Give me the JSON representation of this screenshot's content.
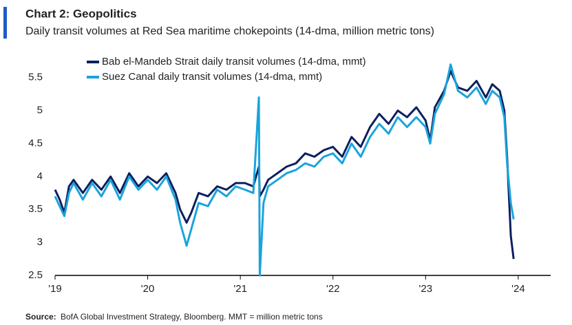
{
  "chart_data": {
    "type": "line",
    "title": "Chart 2: Geopolitics",
    "subtitle": "Daily transit volumes at Red Sea maritime chokepoints (14-dma, million metric tons)",
    "source_label": "Source:",
    "source": "BofA Global Investment Strategy, Bloomberg. MMT = million metric tons",
    "x": [
      2019,
      2019.05,
      2019.1,
      2019.15,
      2019.2,
      2019.3,
      2019.4,
      2019.5,
      2019.6,
      2019.7,
      2019.8,
      2019.9,
      2020,
      2020.1,
      2020.2,
      2020.3,
      2020.35,
      2020.42,
      2020.47,
      2020.55,
      2020.65,
      2020.75,
      2020.85,
      2020.95,
      2021.05,
      2021.14,
      2021.2,
      2021.21,
      2021.25,
      2021.3,
      2021.4,
      2021.5,
      2021.6,
      2021.7,
      2021.8,
      2021.9,
      2022,
      2022.1,
      2022.2,
      2022.3,
      2022.4,
      2022.5,
      2022.6,
      2022.7,
      2022.8,
      2022.9,
      2023,
      2023.05,
      2023.1,
      2023.2,
      2023.27,
      2023.35,
      2023.45,
      2023.55,
      2023.65,
      2023.72,
      2023.8,
      2023.85,
      2023.88,
      2023.92,
      2023.95
    ],
    "series": [
      {
        "name": "Bab el-Mandeb Strait daily transit volumes (14-dma, mmt)",
        "color": "#0b1f5e",
        "values": [
          3.8,
          3.65,
          3.45,
          3.85,
          3.95,
          3.75,
          3.95,
          3.8,
          4.0,
          3.75,
          4.05,
          3.85,
          4.0,
          3.9,
          4.05,
          3.75,
          3.5,
          3.3,
          3.45,
          3.75,
          3.7,
          3.85,
          3.8,
          3.9,
          3.9,
          3.85,
          4.15,
          3.7,
          3.8,
          3.95,
          4.05,
          4.15,
          4.2,
          4.35,
          4.3,
          4.4,
          4.45,
          4.3,
          4.6,
          4.45,
          4.75,
          4.95,
          4.8,
          5.0,
          4.9,
          5.05,
          4.85,
          4.55,
          5.05,
          5.3,
          5.6,
          5.35,
          5.3,
          5.45,
          5.2,
          5.4,
          5.3,
          5.0,
          4.3,
          3.1,
          2.75
        ]
      },
      {
        "name": "Suez Canal daily transit volumes (14-dma, mmt)",
        "color": "#1aa3dc",
        "values": [
          3.7,
          3.55,
          3.4,
          3.75,
          3.9,
          3.65,
          3.9,
          3.7,
          3.95,
          3.65,
          4.0,
          3.8,
          3.95,
          3.8,
          4.0,
          3.65,
          3.3,
          2.95,
          3.2,
          3.6,
          3.55,
          3.8,
          3.7,
          3.85,
          3.8,
          3.75,
          5.2,
          2.5,
          3.6,
          3.85,
          3.95,
          4.05,
          4.1,
          4.2,
          4.15,
          4.3,
          4.35,
          4.2,
          4.5,
          4.3,
          4.6,
          4.8,
          4.65,
          4.9,
          4.75,
          4.9,
          4.75,
          4.5,
          4.95,
          5.25,
          5.7,
          5.3,
          5.2,
          5.35,
          5.1,
          5.3,
          5.2,
          4.9,
          4.2,
          3.6,
          3.35
        ]
      }
    ],
    "xlim": [
      2019,
      2024.35
    ],
    "xticks": [
      {
        "value": 2019,
        "label": "'19"
      },
      {
        "value": 2020,
        "label": "'20"
      },
      {
        "value": 2021,
        "label": "'21"
      },
      {
        "value": 2022,
        "label": "'22"
      },
      {
        "value": 2023,
        "label": "'23"
      },
      {
        "value": 2024,
        "label": "'24"
      }
    ],
    "ylim": [
      2.5,
      5.8
    ],
    "yticks": [
      2.5,
      3.0,
      3.5,
      4.0,
      4.5,
      5.0,
      5.5
    ],
    "grid": false,
    "legend": "top-left"
  }
}
